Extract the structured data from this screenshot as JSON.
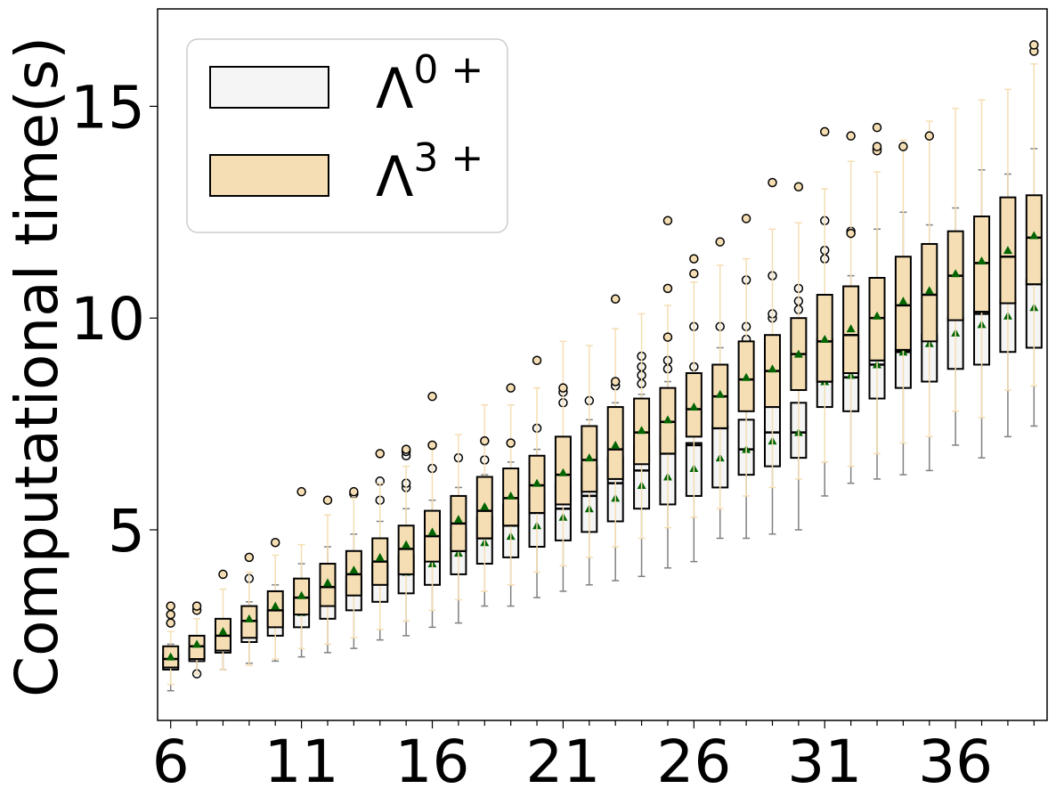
{
  "chart_data": {
    "type": "box",
    "ylabel": "Computational time(s)",
    "xlabel": "",
    "xlim": [
      5.5,
      39.5
    ],
    "ylim": [
      0.5,
      17.3
    ],
    "x_ticks": [
      6,
      11,
      16,
      21,
      26,
      31,
      36
    ],
    "y_ticks": [
      5,
      10,
      15
    ],
    "legend": {
      "position": "upper-left"
    },
    "colors": {
      "lambda0_fill": "#f5f5f5",
      "lambda3_fill": "#f5deb3",
      "lambda0_whisker": "#808080",
      "lambda3_whisker": "#f5deb3",
      "mean_marker": "#006400",
      "box_edge": "#000000"
    },
    "series": [
      {
        "name": "Λ",
        "sup": "0 +",
        "stats": [
          {
            "x": 6,
            "q1": 1.7,
            "median": 1.9,
            "q3": 2.05,
            "wlo": 1.2,
            "whi": 2.3,
            "mean": 1.85,
            "fliers": []
          },
          {
            "x": 7,
            "q1": 1.9,
            "median": 2.05,
            "q3": 2.2,
            "wlo": 1.6,
            "whi": 2.5,
            "mean": 2.05,
            "fliers": [
              1.6
            ]
          },
          {
            "x": 8,
            "q1": 2.1,
            "median": 2.3,
            "q3": 2.5,
            "wlo": 1.7,
            "whi": 2.9,
            "mean": 2.3,
            "fliers": []
          },
          {
            "x": 9,
            "q1": 2.35,
            "median": 2.6,
            "q3": 2.85,
            "wlo": 1.85,
            "whi": 3.3,
            "mean": 2.6,
            "fliers": [
              3.85
            ]
          },
          {
            "x": 10,
            "q1": 2.5,
            "median": 2.8,
            "q3": 3.1,
            "wlo": 1.9,
            "whi": 3.7,
            "mean": 2.8,
            "fliers": []
          },
          {
            "x": 11,
            "q1": 2.7,
            "median": 3.05,
            "q3": 3.4,
            "wlo": 2.0,
            "whi": 4.2,
            "mean": 3.05,
            "fliers": []
          },
          {
            "x": 12,
            "q1": 2.9,
            "median": 3.3,
            "q3": 3.7,
            "wlo": 2.1,
            "whi": 4.6,
            "mean": 3.35,
            "fliers": []
          },
          {
            "x": 13,
            "q1": 3.1,
            "median": 3.5,
            "q3": 3.9,
            "wlo": 2.2,
            "whi": 4.9,
            "mean": 3.55,
            "fliers": [
              5.85
            ]
          },
          {
            "x": 14,
            "q1": 3.3,
            "median": 3.8,
            "q3": 4.2,
            "wlo": 2.4,
            "whi": 5.2,
            "mean": 3.8,
            "fliers": [
              5.7,
              6.15
            ]
          },
          {
            "x": 15,
            "q1": 3.5,
            "median": 4.1,
            "q3": 4.4,
            "wlo": 2.5,
            "whi": 5.5,
            "mean": 4.0,
            "fliers": [
              6.0,
              6.1,
              6.75,
              6.85
            ]
          },
          {
            "x": 16,
            "q1": 3.7,
            "median": 4.3,
            "q3": 4.7,
            "wlo": 2.7,
            "whi": 5.7,
            "mean": 4.2,
            "fliers": [
              6.45
            ]
          },
          {
            "x": 17,
            "q1": 3.95,
            "median": 4.5,
            "q3": 5.0,
            "wlo": 2.8,
            "whi": 6.0,
            "mean": 4.45,
            "fliers": [
              6.7
            ]
          },
          {
            "x": 18,
            "q1": 4.2,
            "median": 4.8,
            "q3": 5.3,
            "wlo": 3.2,
            "whi": 6.3,
            "mean": 4.7,
            "fliers": [
              6.65
            ]
          },
          {
            "x": 19,
            "q1": 4.35,
            "median": 5.1,
            "q3": 5.6,
            "wlo": 3.2,
            "whi": 6.6,
            "mean": 4.85,
            "fliers": []
          },
          {
            "x": 20,
            "q1": 4.6,
            "median": 5.4,
            "q3": 5.9,
            "wlo": 3.4,
            "whi": 6.9,
            "mean": 5.1,
            "fliers": [
              7.4
            ]
          },
          {
            "x": 21,
            "q1": 4.75,
            "median": 5.5,
            "q3": 6.1,
            "wlo": 3.55,
            "whi": 7.2,
            "mean": 5.3,
            "fliers": [
              8.0,
              8.25
            ]
          },
          {
            "x": 22,
            "q1": 4.95,
            "median": 5.8,
            "q3": 6.5,
            "wlo": 3.7,
            "whi": 7.6,
            "mean": 5.5,
            "fliers": [
              8.05
            ]
          },
          {
            "x": 23,
            "q1": 5.2,
            "median": 6.1,
            "q3": 6.7,
            "wlo": 3.8,
            "whi": 8.0,
            "mean": 5.75,
            "fliers": [
              8.4
            ]
          },
          {
            "x": 24,
            "q1": 5.5,
            "median": 6.4,
            "q3": 7.0,
            "wlo": 3.9,
            "whi": 8.2,
            "mean": 6.05,
            "fliers": [
              8.45,
              8.65,
              8.85,
              9.1
            ]
          },
          {
            "x": 25,
            "q1": 5.6,
            "median": 6.8,
            "q3": 7.2,
            "wlo": 4.1,
            "whi": 8.5,
            "mean": 6.25,
            "fliers": [
              8.8,
              9.0
            ]
          },
          {
            "x": 26,
            "q1": 5.8,
            "median": 7.0,
            "q3": 7.05,
            "wlo": 4.25,
            "whi": 8.6,
            "mean": 6.45,
            "fliers": [
              8.85,
              9.8
            ]
          },
          {
            "x": 27,
            "q1": 6.0,
            "median": 7.4,
            "q3": 7.45,
            "wlo": 4.8,
            "whi": 9.3,
            "mean": 6.7,
            "fliers": [
              9.8
            ]
          },
          {
            "x": 28,
            "q1": 6.3,
            "median": 6.9,
            "q3": 7.6,
            "wlo": 4.8,
            "whi": 9.0,
            "mean": 6.9,
            "fliers": [
              9.5,
              9.8,
              10.9
            ]
          },
          {
            "x": 29,
            "q1": 6.5,
            "median": 7.3,
            "q3": 7.9,
            "wlo": 4.9,
            "whi": 9.5,
            "mean": 7.1,
            "fliers": [
              10.0,
              10.1,
              11.0
            ]
          },
          {
            "x": 30,
            "q1": 6.7,
            "median": 7.3,
            "q3": 8.0,
            "wlo": 5.0,
            "whi": 9.8,
            "mean": 7.3,
            "fliers": [
              10.2,
              10.4,
              10.7
            ]
          },
          {
            "x": 31,
            "q1": 7.9,
            "median": 8.5,
            "q3": 9.5,
            "wlo": 5.8,
            "whi": 10.5,
            "mean": 8.5,
            "fliers": [
              11.4,
              11.6,
              12.3
            ]
          },
          {
            "x": 32,
            "q1": 7.8,
            "median": 8.6,
            "q3": 9.6,
            "wlo": 6.1,
            "whi": 11.0,
            "mean": 8.65,
            "fliers": [
              12.05
            ]
          },
          {
            "x": 33,
            "q1": 8.1,
            "median": 8.9,
            "q3": 9.0,
            "wlo": 6.2,
            "whi": 12.1,
            "mean": 8.9,
            "fliers": [
              14.0
            ]
          },
          {
            "x": 34,
            "q1": 8.35,
            "median": 9.2,
            "q3": 9.25,
            "wlo": 6.3,
            "whi": 12.5,
            "mean": 9.2,
            "fliers": []
          },
          {
            "x": 35,
            "q1": 8.5,
            "median": 9.5,
            "q3": 9.6,
            "wlo": 6.4,
            "whi": 12.2,
            "mean": 9.4,
            "fliers": []
          },
          {
            "x": 36,
            "q1": 8.8,
            "median": 10.0,
            "q3": 10.0,
            "wlo": 7.0,
            "whi": 12.6,
            "mean": 9.65,
            "fliers": []
          },
          {
            "x": 37,
            "q1": 8.9,
            "median": 10.1,
            "q3": 10.2,
            "wlo": 6.7,
            "whi": 13.5,
            "mean": 9.85,
            "fliers": []
          },
          {
            "x": 38,
            "q1": 9.2,
            "median": 10.4,
            "q3": 10.4,
            "wlo": 7.2,
            "whi": 13.4,
            "mean": 10.05,
            "fliers": []
          },
          {
            "x": 39,
            "q1": 9.3,
            "median": 10.8,
            "q3": 10.9,
            "wlo": 7.45,
            "whi": 14.0,
            "mean": 10.25,
            "fliers": []
          }
        ]
      },
      {
        "name": "Λ",
        "sup": "3 +",
        "stats": [
          {
            "x": 6,
            "q1": 1.75,
            "median": 1.95,
            "q3": 2.25,
            "wlo": 1.35,
            "whi": 2.6,
            "mean": 2.0,
            "fliers": [
              2.8,
              3.0,
              3.2
            ]
          },
          {
            "x": 7,
            "q1": 1.95,
            "median": 2.25,
            "q3": 2.5,
            "wlo": 1.6,
            "whi": 2.9,
            "mean": 2.3,
            "fliers": [
              3.1,
              3.2
            ]
          },
          {
            "x": 8,
            "q1": 2.15,
            "median": 2.5,
            "q3": 2.9,
            "wlo": 1.7,
            "whi": 3.6,
            "mean": 2.6,
            "fliers": [
              3.95
            ]
          },
          {
            "x": 9,
            "q1": 2.45,
            "median": 2.85,
            "q3": 3.2,
            "wlo": 1.8,
            "whi": 4.0,
            "mean": 2.9,
            "fliers": [
              4.35
            ]
          },
          {
            "x": 10,
            "q1": 2.7,
            "median": 3.1,
            "q3": 3.55,
            "wlo": 1.95,
            "whi": 4.4,
            "mean": 3.2,
            "fliers": [
              4.7
            ]
          },
          {
            "x": 11,
            "q1": 3.0,
            "median": 3.4,
            "q3": 3.85,
            "wlo": 2.2,
            "whi": 4.65,
            "mean": 3.45,
            "fliers": [
              5.9
            ]
          },
          {
            "x": 12,
            "q1": 3.2,
            "median": 3.65,
            "q3": 4.2,
            "wlo": 2.3,
            "whi": 5.35,
            "mean": 3.75,
            "fliers": [
              5.7
            ]
          },
          {
            "x": 13,
            "q1": 3.45,
            "median": 3.95,
            "q3": 4.5,
            "wlo": 2.45,
            "whi": 5.75,
            "mean": 4.05,
            "fliers": [
              5.9
            ]
          },
          {
            "x": 14,
            "q1": 3.7,
            "median": 4.25,
            "q3": 4.8,
            "wlo": 2.65,
            "whi": 6.1,
            "mean": 4.35,
            "fliers": [
              6.8
            ]
          },
          {
            "x": 15,
            "q1": 3.95,
            "median": 4.55,
            "q3": 5.1,
            "wlo": 2.85,
            "whi": 6.5,
            "mean": 4.65,
            "fliers": [
              6.9
            ]
          },
          {
            "x": 16,
            "q1": 4.25,
            "median": 4.85,
            "q3": 5.45,
            "wlo": 3.1,
            "whi": 6.9,
            "mean": 4.95,
            "fliers": [
              7.0,
              8.15
            ]
          },
          {
            "x": 17,
            "q1": 4.5,
            "median": 5.15,
            "q3": 5.8,
            "wlo": 3.35,
            "whi": 7.25,
            "mean": 5.25,
            "fliers": []
          },
          {
            "x": 18,
            "q1": 4.8,
            "median": 5.45,
            "q3": 6.25,
            "wlo": 3.55,
            "whi": 7.95,
            "mean": 5.55,
            "fliers": [
              7.1
            ]
          },
          {
            "x": 19,
            "q1": 5.1,
            "median": 5.75,
            "q3": 6.45,
            "wlo": 3.7,
            "whi": 7.95,
            "mean": 5.8,
            "fliers": [
              7.05,
              8.35
            ]
          },
          {
            "x": 20,
            "q1": 5.4,
            "median": 6.05,
            "q3": 6.75,
            "wlo": 4.0,
            "whi": 8.35,
            "mean": 6.1,
            "fliers": [
              9.0
            ]
          },
          {
            "x": 21,
            "q1": 5.6,
            "median": 6.3,
            "q3": 7.2,
            "wlo": 4.15,
            "whi": 9.45,
            "mean": 6.35,
            "fliers": [
              8.35
            ]
          },
          {
            "x": 22,
            "q1": 5.9,
            "median": 6.65,
            "q3": 7.45,
            "wlo": 4.35,
            "whi": 9.35,
            "mean": 6.7,
            "fliers": []
          },
          {
            "x": 23,
            "q1": 6.2,
            "median": 6.9,
            "q3": 7.9,
            "wlo": 4.6,
            "whi": 9.75,
            "mean": 7.0,
            "fliers": [
              8.5,
              10.45
            ]
          },
          {
            "x": 24,
            "q1": 6.55,
            "median": 7.3,
            "q3": 8.1,
            "wlo": 4.8,
            "whi": 10.1,
            "mean": 7.35,
            "fliers": []
          },
          {
            "x": 25,
            "q1": 6.8,
            "median": 7.55,
            "q3": 8.35,
            "wlo": 5.05,
            "whi": 10.3,
            "mean": 7.6,
            "fliers": [
              9.55,
              10.7,
              12.3
            ]
          },
          {
            "x": 26,
            "q1": 7.2,
            "median": 7.85,
            "q3": 8.7,
            "wlo": 5.3,
            "whi": 10.85,
            "mean": 7.9,
            "fliers": [
              11.05,
              11.4
            ]
          },
          {
            "x": 27,
            "q1": 7.4,
            "median": 8.15,
            "q3": 8.9,
            "wlo": 5.5,
            "whi": 11.25,
            "mean": 8.2,
            "fliers": [
              11.8
            ]
          },
          {
            "x": 28,
            "q1": 7.8,
            "median": 8.55,
            "q3": 9.45,
            "wlo": 5.8,
            "whi": 11.4,
            "mean": 8.6,
            "fliers": [
              12.35
            ]
          },
          {
            "x": 29,
            "q1": 7.9,
            "median": 8.75,
            "q3": 9.6,
            "wlo": 6.0,
            "whi": 12.1,
            "mean": 8.8,
            "fliers": [
              13.2
            ]
          },
          {
            "x": 30,
            "q1": 8.3,
            "median": 9.15,
            "q3": 10.0,
            "wlo": 6.2,
            "whi": 12.25,
            "mean": 9.15,
            "fliers": [
              13.1
            ]
          },
          {
            "x": 31,
            "q1": 8.5,
            "median": 9.45,
            "q3": 10.55,
            "wlo": 6.6,
            "whi": 13.05,
            "mean": 9.5,
            "fliers": [
              14.4
            ]
          },
          {
            "x": 32,
            "q1": 8.7,
            "median": 9.6,
            "q3": 10.75,
            "wlo": 6.5,
            "whi": 13.7,
            "mean": 9.75,
            "fliers": [
              12.0,
              14.3
            ]
          },
          {
            "x": 33,
            "q1": 9.0,
            "median": 10.0,
            "q3": 10.95,
            "wlo": 6.8,
            "whi": 13.45,
            "mean": 10.05,
            "fliers": [
              13.95,
              14.05,
              14.5
            ]
          },
          {
            "x": 34,
            "q1": 9.25,
            "median": 10.3,
            "q3": 11.45,
            "wlo": 7.05,
            "whi": 14.2,
            "mean": 10.4,
            "fliers": [
              14.05
            ]
          },
          {
            "x": 35,
            "q1": 9.45,
            "median": 10.55,
            "q3": 11.75,
            "wlo": 7.2,
            "whi": 14.65,
            "mean": 10.65,
            "fliers": [
              14.3
            ]
          },
          {
            "x": 36,
            "q1": 9.95,
            "median": 11.0,
            "q3": 12.05,
            "wlo": 7.8,
            "whi": 14.95,
            "mean": 11.05,
            "fliers": []
          },
          {
            "x": 37,
            "q1": 10.15,
            "median": 11.3,
            "q3": 12.4,
            "wlo": 7.65,
            "whi": 15.15,
            "mean": 11.35,
            "fliers": []
          },
          {
            "x": 38,
            "q1": 10.35,
            "median": 11.45,
            "q3": 12.85,
            "wlo": 8.3,
            "whi": 15.4,
            "mean": 11.6,
            "fliers": []
          },
          {
            "x": 39,
            "q1": 10.8,
            "median": 11.9,
            "q3": 12.9,
            "wlo": 8.4,
            "whi": 16.0,
            "mean": 11.95,
            "fliers": [
              16.3,
              16.45
            ]
          }
        ]
      }
    ]
  }
}
